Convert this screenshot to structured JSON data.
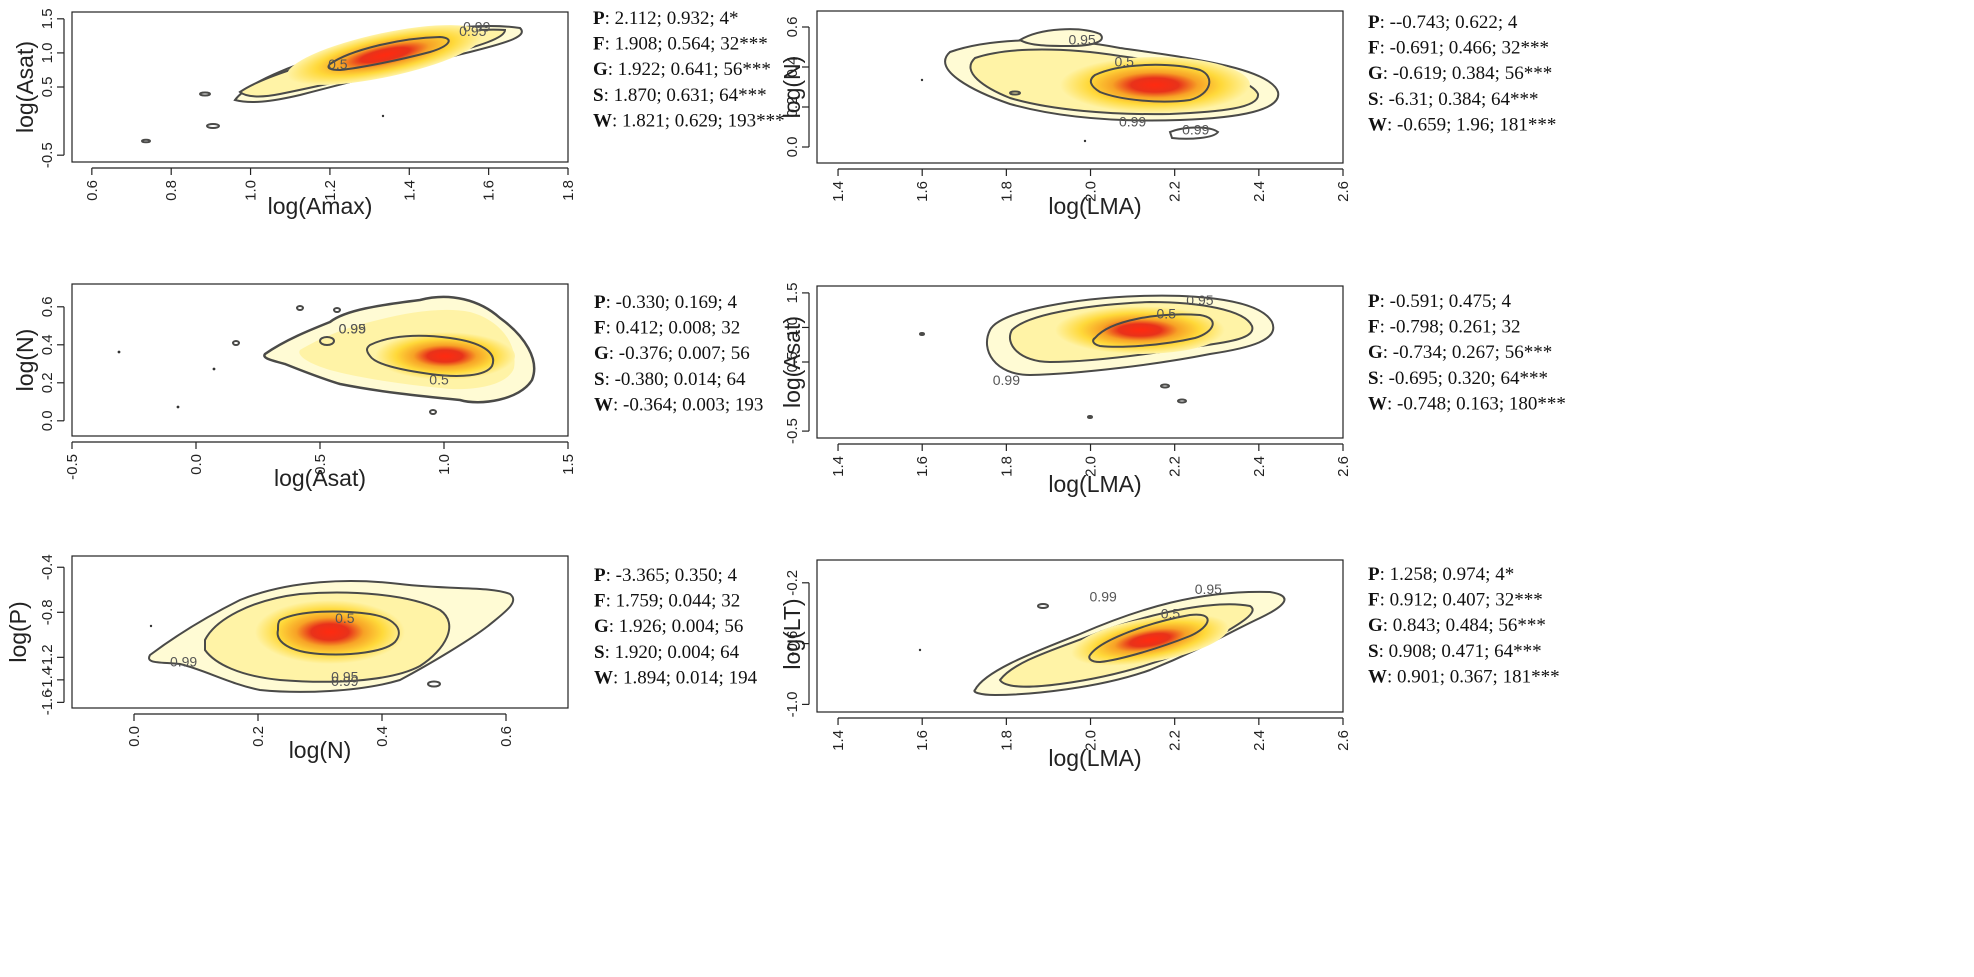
{
  "colors": {
    "background": "#ffffff",
    "axis": "#222222",
    "contour": "#4a4a48",
    "outer_fill": "#fffbd4",
    "mid_fill": "#fff3a6",
    "yellow": "#ffd93a",
    "orange": "#f7a226",
    "red": "#e8321a",
    "core": "#ff2a10"
  },
  "chart_data": [
    {
      "id": "p1",
      "type": "density-contour",
      "xlabel": "log(Amax)",
      "ylabel": "log(Asat)",
      "xlim": [
        0.55,
        1.8
      ],
      "ylim": [
        -0.6,
        1.6
      ],
      "x_ticks": [
        "0.6",
        "0.8",
        "1.0",
        "1.2",
        "1.4",
        "1.6",
        "1.8"
      ],
      "y_ticks": [
        "-0.5",
        "0.5",
        "1.0",
        "1.5"
      ],
      "contour_labels": [
        {
          "text": "0.99",
          "x": 1.57,
          "y": 1.37
        },
        {
          "text": "0.95",
          "x": 1.56,
          "y": 1.3
        },
        {
          "text": "0.5",
          "x": 1.22,
          "y": 0.82
        }
      ],
      "stats": [
        {
          "key": "P",
          "value": ": 2.112; 0.932; 4*"
        },
        {
          "key": "F",
          "value": ": 1.908; 0.564; 32***"
        },
        {
          "key": "G",
          "value": ": 1.922; 0.641; 56***"
        },
        {
          "key": "S",
          "value": ": 1.870; 0.631; 64***"
        },
        {
          "key": "W",
          "value": ": 1.821; 0.629; 193***"
        }
      ]
    },
    {
      "id": "p2",
      "type": "density-contour",
      "xlabel": "log(LMA)",
      "ylabel": "log(N)",
      "xlim": [
        1.35,
        2.6
      ],
      "ylim": [
        -0.08,
        0.68
      ],
      "x_ticks": [
        "1.4",
        "1.6",
        "1.8",
        "2.0",
        "2.2",
        "2.4",
        "2.6"
      ],
      "y_ticks": [
        "0.0",
        "0.2",
        "0.4",
        "0.6"
      ],
      "contour_labels": [
        {
          "text": "0.95",
          "x": 1.98,
          "y": 0.53
        },
        {
          "text": "0.5",
          "x": 2.08,
          "y": 0.42
        },
        {
          "text": "0.99",
          "x": 2.1,
          "y": 0.12
        },
        {
          "text": "0.99",
          "x": 2.25,
          "y": 0.08
        }
      ],
      "stats": [
        {
          "key": "P",
          "value": ": --0.743; 0.622; 4"
        },
        {
          "key": "F",
          "value": ": -0.691; 0.466; 32***"
        },
        {
          "key": "G",
          "value": ": -0.619; 0.384; 56***"
        },
        {
          "key": "S",
          "value": ":  -6.31; 0.384; 64***"
        },
        {
          "key": "W",
          "value": ": -0.659; 1.96; 181***"
        }
      ]
    },
    {
      "id": "p3",
      "type": "density-contour",
      "xlabel": "log(Asat)",
      "ylabel": "log(N)",
      "xlim": [
        -0.5,
        1.5
      ],
      "ylim": [
        -0.08,
        0.72
      ],
      "x_ticks": [
        "-0.5",
        "0.0",
        "0.5",
        "1.0",
        "1.5"
      ],
      "y_ticks": [
        "0.0",
        "0.2",
        "0.4",
        "0.6"
      ],
      "contour_labels": [
        {
          "text": "0.99",
          "x": 0.63,
          "y": 0.48
        },
        {
          "text": "0.95",
          "x": 0.63,
          "y": 0.48
        },
        {
          "text": "0.5",
          "x": 0.98,
          "y": 0.21
        }
      ],
      "stats": [
        {
          "key": "P",
          "value": ": -0.330; 0.169; 4"
        },
        {
          "key": "F",
          "value": ": 0.412; 0.008; 32"
        },
        {
          "key": "G",
          "value": ": -0.376; 0.007; 56"
        },
        {
          "key": "S",
          "value": ": -0.380; 0.014; 64"
        },
        {
          "key": "W",
          "value": ": -0.364; 0.003; 193"
        }
      ]
    },
    {
      "id": "p4",
      "type": "density-contour",
      "xlabel": "log(LMA)",
      "ylabel": "log(Asat)",
      "xlim": [
        1.35,
        2.6
      ],
      "ylim": [
        -0.6,
        1.6
      ],
      "x_ticks": [
        "1.4",
        "1.6",
        "1.8",
        "2.0",
        "2.2",
        "2.4",
        "2.6"
      ],
      "y_ticks": [
        "-0.5",
        "0.5",
        "1.0",
        "1.5"
      ],
      "contour_labels": [
        {
          "text": "0.95",
          "x": 2.26,
          "y": 1.38
        },
        {
          "text": "0.5",
          "x": 2.18,
          "y": 1.18
        },
        {
          "text": "0.99",
          "x": 1.8,
          "y": 0.22
        }
      ],
      "stats": [
        {
          "key": "P",
          "value": ": -0.591; 0.475; 4"
        },
        {
          "key": "F",
          "value": ": -0.798; 0.261; 32"
        },
        {
          "key": "G",
          "value": ": -0.734; 0.267; 56***"
        },
        {
          "key": "S",
          "value": ": -0.695; 0.320; 64***"
        },
        {
          "key": "W",
          "value": ": -0.748; 0.163; 180***"
        }
      ]
    },
    {
      "id": "p5",
      "type": "density-contour",
      "xlabel": "log(N)",
      "ylabel": "log(P)",
      "xlim": [
        -0.1,
        0.7
      ],
      "ylim": [
        -1.65,
        -0.3
      ],
      "x_ticks": [
        "0.0",
        "0.2",
        "0.4",
        "0.6"
      ],
      "y_ticks": [
        "-1.6",
        "-1.4",
        "-1.2",
        "-0.8",
        "-0.4"
      ],
      "contour_labels": [
        {
          "text": "0.5",
          "x": 0.34,
          "y": -0.86
        },
        {
          "text": "0.99",
          "x": 0.08,
          "y": -1.25
        },
        {
          "text": "0.95",
          "x": 0.34,
          "y": -1.38
        },
        {
          "text": "0.99",
          "x": 0.34,
          "y": -1.42
        }
      ],
      "stats": [
        {
          "key": "P",
          "value": ":  -3.365; 0.350; 4"
        },
        {
          "key": "F",
          "value": ": 1.759; 0.044; 32"
        },
        {
          "key": "G",
          "value": ":  1.926; 0.004; 56"
        },
        {
          "key": "S",
          "value": ": 1.920; 0.004; 64"
        },
        {
          "key": "W",
          "value": ": 1.894; 0.014; 194"
        }
      ]
    },
    {
      "id": "p6",
      "type": "density-contour",
      "xlabel": "log(LMA)",
      "ylabel": "log(LT)",
      "xlim": [
        1.35,
        2.6
      ],
      "ylim": [
        -1.05,
        -0.05
      ],
      "x_ticks": [
        "1.4",
        "1.6",
        "1.8",
        "2.0",
        "2.2",
        "2.4",
        "2.6"
      ],
      "y_ticks": [
        "-1.0",
        "-0.6",
        "-0.2"
      ],
      "contour_labels": [
        {
          "text": "0.99",
          "x": 2.03,
          "y": -0.3
        },
        {
          "text": "0.95",
          "x": 2.28,
          "y": -0.25
        },
        {
          "text": "0.5",
          "x": 2.19,
          "y": -0.41
        }
      ],
      "stats": [
        {
          "key": "P",
          "value": ": 1.258; 0.974; 4*"
        },
        {
          "key": "F",
          "value": ": 0.912; 0.407; 32***"
        },
        {
          "key": "G",
          "value": ": 0.843; 0.484; 56***"
        },
        {
          "key": "S",
          "value": ": 0.908; 0.471; 64***"
        },
        {
          "key": "W",
          "value": ": 0.901; 0.367; 181***"
        }
      ]
    }
  ]
}
